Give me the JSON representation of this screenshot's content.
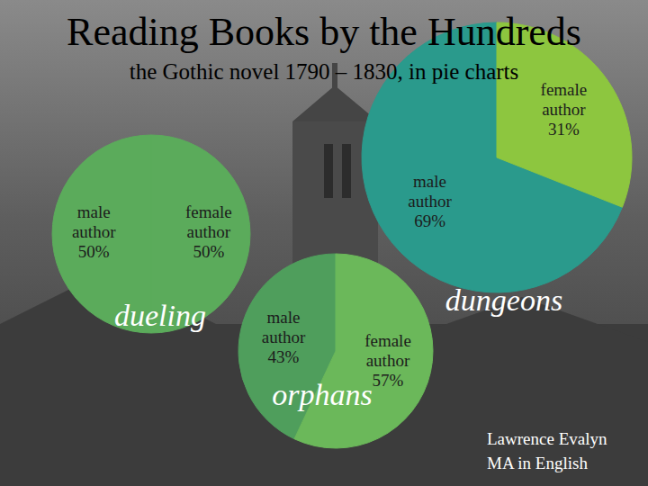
{
  "title": "Reading Books by the Hundreds",
  "subtitle": "the Gothic novel 1790 – 1830, in pie charts",
  "annotations": [
    "Lawrence Evalyn",
    "MA in English"
  ],
  "chart_data": [
    {
      "type": "pie",
      "title": "dueling",
      "categories": [
        "male author",
        "female author"
      ],
      "values": [
        50,
        50
      ],
      "value_labels": [
        "50%",
        "50%"
      ],
      "data_labels": true,
      "colors": [
        "#5bab5b",
        "#5bab5b"
      ]
    },
    {
      "type": "pie",
      "title": "dungeons",
      "categories": [
        "male author",
        "female author"
      ],
      "values": [
        69,
        31
      ],
      "value_labels": [
        "69%",
        "31%"
      ],
      "data_labels": true,
      "colors": [
        "#2a9a8c",
        "#8dc63f"
      ]
    },
    {
      "type": "pie",
      "title": "orphans",
      "categories": [
        "male author",
        "female author"
      ],
      "values": [
        43,
        57
      ],
      "value_labels": [
        "43%",
        "57%"
      ],
      "data_labels": true,
      "colors": [
        "#4f9e5c",
        "#6bb85a"
      ]
    }
  ]
}
